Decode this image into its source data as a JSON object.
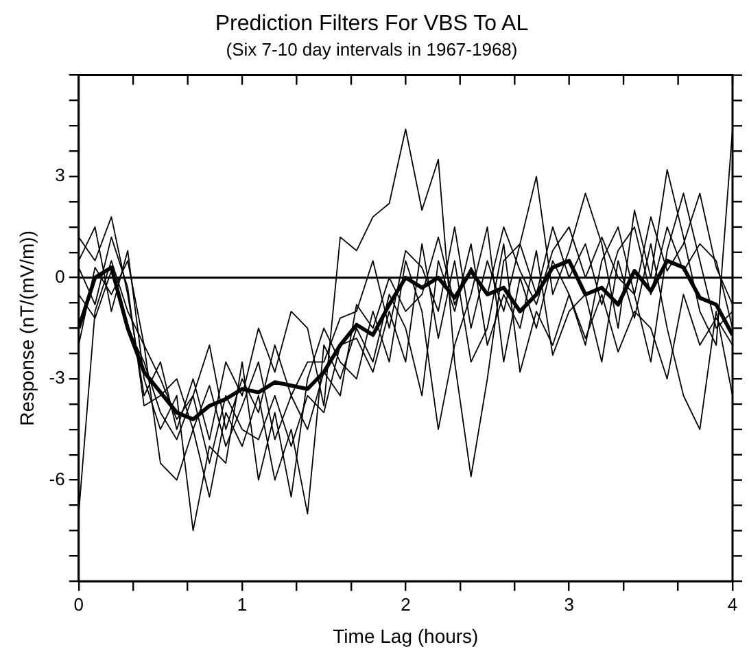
{
  "chart_data": {
    "type": "line",
    "title": "Prediction Filters For VBS To AL",
    "subtitle": "(Six 7-10 day intervals in 1967-1968)",
    "xlabel": "Time Lag (hours)",
    "ylabel": "Response (nT/(mV/m))",
    "x": [
      0,
      0.1,
      0.2,
      0.3,
      0.4,
      0.5,
      0.6,
      0.7,
      0.8,
      0.9,
      1.0,
      1.1,
      1.2,
      1.3,
      1.4,
      1.5,
      1.6,
      1.7,
      1.8,
      1.9,
      2.0,
      2.1,
      2.2,
      2.3,
      2.4,
      2.5,
      2.6,
      2.7,
      2.8,
      2.9,
      3.0,
      3.1,
      3.2,
      3.3,
      3.4,
      3.5,
      3.6,
      3.7,
      3.8,
      3.9,
      4.0
    ],
    "series": [
      {
        "color": "#000000",
        "values": [
          1.2,
          0.5,
          1.8,
          -0.5,
          -3.5,
          -2.5,
          -4.5,
          -3.0,
          -4.8,
          -2.5,
          -3.5,
          -1.5,
          -2.8,
          -1.0,
          -1.5,
          -3.8,
          1.2,
          0.8,
          1.8,
          2.2,
          4.4,
          2.0,
          3.5,
          -2.5,
          -5.9,
          -3.0,
          0.5,
          1.0,
          3.0,
          -0.5,
          0.8,
          2.5,
          1.0,
          -1.5,
          2.0,
          0,
          3.2,
          1.2,
          -1.0,
          -2.0,
          4.4
        ]
      },
      {
        "color": "#000000",
        "values": [
          -7,
          -1,
          0.5,
          -1,
          -2,
          -5.5,
          -6,
          -4.5,
          -6.5,
          -4,
          -5,
          -3.5,
          -6,
          -4.5,
          -7,
          -2,
          -3,
          -1.5,
          -2.5,
          -0.5,
          -1.5,
          -3.5,
          0.5,
          -1,
          1,
          -2,
          -0.5,
          -1.5,
          0.8,
          -2.3,
          -1,
          -0.5,
          -2.5,
          0.5,
          -1.2,
          1,
          -1.5,
          -3.5,
          -4.5,
          -1,
          -3.5
        ]
      },
      {
        "color": "#000000",
        "values": [
          0.5,
          1.5,
          -1,
          0.8,
          -3,
          -4.5,
          -3.5,
          -7.5,
          -5,
          -5.5,
          -2.5,
          -6,
          -4,
          -6.5,
          -3,
          -1.5,
          -2.5,
          -3,
          -1,
          -2.5,
          0.5,
          -1,
          -4.5,
          -2,
          -0.5,
          1.5,
          -2.5,
          0,
          -1.5,
          0.5,
          -0.5,
          -2,
          0.5,
          1.5,
          -0.5,
          -2.5,
          0.8,
          2.5,
          0.5,
          -1.5,
          -1
        ]
      },
      {
        "color": "#000000",
        "values": [
          -2,
          0.3,
          -0.5,
          0.5,
          -2,
          -3,
          -4.2,
          -3.5,
          -2,
          -4.5,
          -3,
          -4,
          -2,
          -3.5,
          -2.5,
          -2.5,
          -1.2,
          -1,
          0.5,
          -1.5,
          0.8,
          0.3,
          -1,
          1.5,
          -1.5,
          0.5,
          -1,
          1,
          -0.5,
          1.5,
          0,
          1,
          -0.8,
          0.8,
          1.5,
          -0.5,
          1.5,
          0.2,
          1,
          0.5,
          -1.5
        ]
      },
      {
        "color": "#000000",
        "values": [
          -0.5,
          -1.2,
          0.2,
          -1.5,
          -2.5,
          -4,
          -4.8,
          -3.5,
          -5.5,
          -3.5,
          -4.5,
          -4.8,
          -3.5,
          -5,
          -3.5,
          -4,
          -2,
          -1.8,
          -2.8,
          -1,
          -2.5,
          1,
          -1.8,
          0.5,
          -2.5,
          -1.5,
          1,
          -2.8,
          -1,
          -2,
          -0.5,
          -1.8,
          -0.5,
          -2.2,
          -1,
          -1.5,
          -3,
          -0.5,
          -2,
          -1.2,
          -2
        ]
      },
      {
        "color": "#000000",
        "values": [
          0.3,
          -0.8,
          1.2,
          -0.3,
          -3.8,
          -3.5,
          -3,
          -4.5,
          -3.2,
          -5,
          -3.8,
          -2.5,
          -4.8,
          -3.5,
          -4.5,
          -2.8,
          -3.5,
          -0.8,
          -1.5,
          0,
          -1,
          -0.5,
          1.2,
          -0.8,
          0.3,
          -0.5,
          1.5,
          0.2,
          -0.8,
          0.8,
          1.5,
          0,
          1.2,
          0,
          -0.5,
          1.8,
          0.2,
          1,
          2.5,
          0.3,
          -0.8
        ]
      },
      {
        "color": "#000000",
        "values": [
          -1.5,
          0,
          0.3,
          -1.5,
          -2.8,
          -3.4,
          -4.0,
          -4.2,
          -3.8,
          -3.6,
          -3.3,
          -3.4,
          -3.1,
          -3.2,
          -3.3,
          -2.8,
          -2.0,
          -1.4,
          -1.7,
          -0.8,
          0,
          -0.3,
          0,
          -0.6,
          0.2,
          -0.5,
          -0.3,
          -1.0,
          -0.5,
          0.3,
          0.5,
          -0.5,
          -0.3,
          -0.8,
          0.2,
          -0.4,
          0.5,
          0.3,
          -0.6,
          -0.8,
          -1.7
        ]
      }
    ],
    "xlim": [
      0,
      4
    ],
    "xticks": [
      0,
      {
        "value": 0.333,
        "label": null
      },
      {
        "value": 0.667,
        "label": null
      },
      1,
      {
        "value": 1.333,
        "label": null
      },
      {
        "value": 1.667,
        "label": null
      },
      2,
      {
        "value": 2.333,
        "label": null
      },
      {
        "value": 2.667,
        "label": null
      },
      3,
      {
        "value": 3.333,
        "label": null
      },
      {
        "value": 3.667,
        "label": null
      },
      4
    ],
    "ylim": [
      -9,
      6
    ],
    "yticks": [
      {
        "value": -9,
        "label": null
      },
      {
        "value": -8.25,
        "label": null
      },
      {
        "value": -7.5,
        "label": null
      },
      {
        "value": -6.75,
        "label": null
      },
      -6,
      {
        "value": -5.25,
        "label": null
      },
      {
        "value": -4.5,
        "label": null
      },
      {
        "value": -3.75,
        "label": null
      },
      -3,
      {
        "value": -2.25,
        "label": null
      },
      {
        "value": -1.5,
        "label": null
      },
      {
        "value": -0.75,
        "label": null
      },
      0,
      {
        "value": 0.75,
        "label": null
      },
      {
        "value": 1.5,
        "label": null
      },
      {
        "value": 2.25,
        "label": null
      },
      3,
      {
        "value": 3.75,
        "label": null
      },
      {
        "value": 4.5,
        "label": null
      },
      {
        "value": 5.25,
        "label": null
      },
      {
        "value": 6,
        "label": null
      }
    ],
    "ref_lines": [
      {
        "axis": "y",
        "value": 0,
        "color": "#000000"
      }
    ],
    "grid": false,
    "legend": false,
    "marker": "none",
    "line_style": "solid"
  }
}
